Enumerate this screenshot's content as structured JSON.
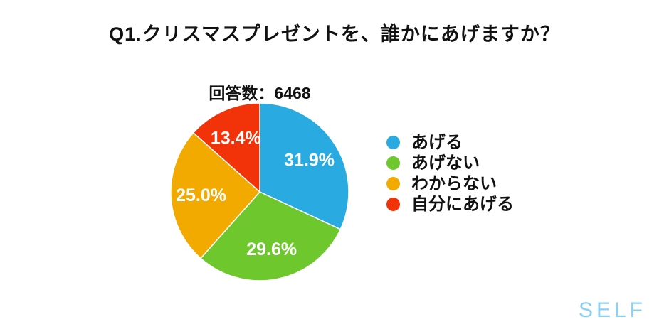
{
  "page": {
    "title": "Q1.クリスマスプレゼントを、誰かにあげますか？",
    "respondents_label": "回答数：6468",
    "logo_text": "SELF",
    "background_color": "#FFFFFF",
    "logo_color": "#8BD0F0"
  },
  "chart_data": {
    "type": "pie",
    "title": "Q1.クリスマスプレゼントを、誰かにあげますか？",
    "subtitle": "回答数：6468",
    "respondent_count": 6468,
    "labels": [
      "あげる",
      "あげない",
      "わからない",
      "自分にあげる"
    ],
    "values": [
      31.9,
      29.6,
      25.0,
      13.4
    ],
    "value_labels": [
      "31.9%",
      "29.6%",
      "25.0%",
      "13.4%"
    ],
    "colors": [
      "#29ABE2",
      "#6FC72E",
      "#F2A900",
      "#F23208"
    ],
    "start_angle_deg": -90,
    "direction": "clockwise",
    "legend_position": "right",
    "slice_label_color": "#FFFFFF",
    "slice_border_color": "#FFFFFF"
  }
}
